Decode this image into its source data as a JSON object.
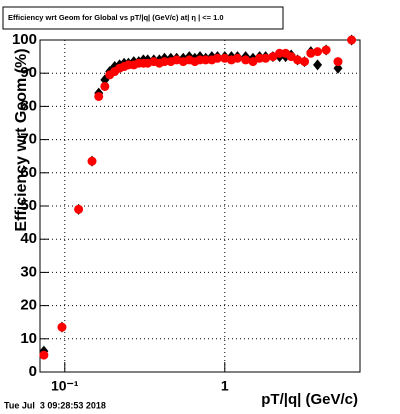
{
  "chart_data": {
    "type": "scatter",
    "title": "Efficiency wrt Geom for Global vs pT/|q| (GeV/c) at| η | <= 1.0",
    "xlabel": "pT/|q| (GeV/c)",
    "ylabel": "Efficiency wrt Geom (%)",
    "timestamp": "Tue Jul  3 09:28:53 2018",
    "xlog": true,
    "grid": true,
    "xlim": [
      0.07,
      7
    ],
    "ylim": [
      0,
      100
    ],
    "xticks": [
      {
        "value": 0.1,
        "label": "10⁻¹"
      },
      1
    ],
    "yticks": [
      0,
      10,
      20,
      30,
      40,
      50,
      60,
      70,
      80,
      90,
      100
    ],
    "x": [
      0.074,
      0.096,
      0.122,
      0.148,
      0.163,
      0.178,
      0.191,
      0.205,
      0.22,
      0.235,
      0.25,
      0.27,
      0.29,
      0.31,
      0.33,
      0.36,
      0.39,
      0.42,
      0.46,
      0.5,
      0.55,
      0.6,
      0.65,
      0.7,
      0.76,
      0.83,
      0.9,
      1.0,
      1.1,
      1.2,
      1.35,
      1.5,
      1.65,
      1.8,
      2.0,
      2.2,
      2.4,
      2.6,
      2.85,
      3.15,
      3.45,
      3.8,
      4.3,
      5.1,
      6.2
    ],
    "series": [
      {
        "color": "#000000",
        "marker": "diamond",
        "values": [
          6.3,
          13.5,
          49,
          63.5,
          84,
          88,
          90.5,
          92,
          92.5,
          93,
          93,
          93.5,
          93.5,
          94,
          94,
          94,
          94,
          94.5,
          94.5,
          94.5,
          94.5,
          95,
          94.5,
          95,
          94.5,
          95,
          95,
          95,
          95,
          95,
          95,
          94.5,
          95,
          95,
          95,
          95,
          95,
          95.5,
          94,
          93.5,
          96.5,
          92.5,
          97,
          91.5,
          100
        ]
      },
      {
        "color": "#ff0000",
        "marker": "circle",
        "values": [
          5.1,
          13.5,
          49,
          63.5,
          83,
          86,
          89.5,
          90.5,
          91.5,
          92,
          92.5,
          92.5,
          93,
          93,
          93,
          93.5,
          93,
          93.5,
          93.5,
          94,
          93.5,
          94,
          93.5,
          94,
          94,
          94,
          94.5,
          94.5,
          94,
          94.5,
          94,
          93.5,
          94.5,
          94.5,
          95,
          96,
          96,
          95,
          94,
          93.5,
          96,
          96.5,
          97,
          93.5,
          100
        ]
      }
    ]
  }
}
